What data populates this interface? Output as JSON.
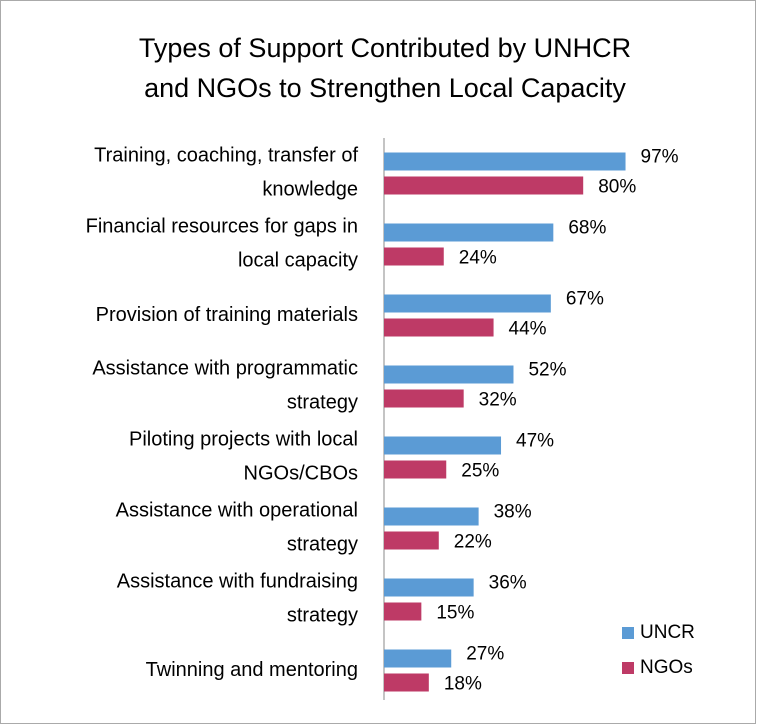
{
  "chart_data": {
    "type": "hbar",
    "title": "Types of Support Contributed by UNHCR\nand NGOs to Strengthen Local Capacity",
    "categories": [
      "Training, coaching, transfer of\nknowledge",
      "Financial resources for gaps in\nlocal capacity",
      "Provision of training materials",
      "Assistance with programmatic\nstrategy",
      "Piloting projects with local\nNGOs/CBOs",
      "Assistance with operational\nstrategy",
      "Assistance with fundraising\nstrategy",
      "Twinning and mentoring"
    ],
    "series": [
      {
        "name": "UNCR",
        "color": "#5b9bd5",
        "values": [
          97,
          68,
          67,
          52,
          47,
          38,
          36,
          27
        ],
        "value_labels": [
          "97%",
          "68%",
          "67%",
          "52%",
          "47%",
          "38%",
          "36%",
          "27%"
        ]
      },
      {
        "name": "NGOs",
        "color": "#be3a66",
        "values": [
          80,
          24,
          44,
          32,
          25,
          22,
          15,
          18
        ],
        "value_labels": [
          "80%",
          "24%",
          "44%",
          "32%",
          "25%",
          "22%",
          "15%",
          "18%"
        ]
      }
    ],
    "xlim": [
      0,
      100
    ],
    "legend": "lower right"
  }
}
